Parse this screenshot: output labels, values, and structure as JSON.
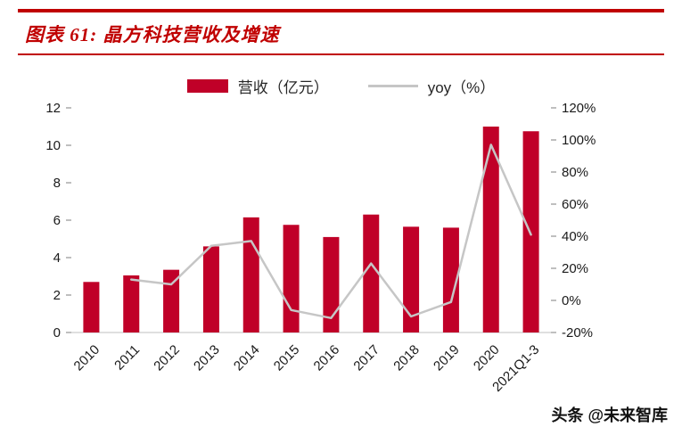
{
  "header": {
    "title": "图表 61: 晶方科技营收及增速"
  },
  "footer": {
    "watermark": "头条 @未来智库"
  },
  "chart_data": {
    "type": "bar+line combo",
    "title": "晶方科技营收及增速",
    "categories": [
      "2010",
      "2011",
      "2012",
      "2013",
      "2014",
      "2015",
      "2016",
      "2017",
      "2018",
      "2019",
      "2020",
      "2021Q1-3"
    ],
    "series": [
      {
        "name": "营收（亿元）",
        "type": "bar",
        "axis": "left",
        "color": "#C00028",
        "values": [
          2.7,
          3.05,
          3.35,
          4.6,
          6.15,
          5.75,
          5.1,
          6.3,
          5.65,
          5.6,
          11.0,
          10.75
        ]
      },
      {
        "name": "yoy（%）",
        "type": "line",
        "axis": "right",
        "color": "#C6C6C6",
        "values": [
          null,
          13,
          10,
          34,
          37,
          -6,
          -11,
          23,
          -10,
          -1,
          97,
          41
        ]
      }
    ],
    "left_axis": {
      "min": 0,
      "max": 12,
      "step": 2,
      "ticks": [
        "0",
        "2",
        "4",
        "6",
        "8",
        "10",
        "12"
      ]
    },
    "right_axis": {
      "min": -20,
      "max": 120,
      "step": 20,
      "ticks": [
        "-20%",
        "0%",
        "20%",
        "40%",
        "60%",
        "80%",
        "100%",
        "120%"
      ]
    },
    "grid": false,
    "legend_position": "top"
  }
}
